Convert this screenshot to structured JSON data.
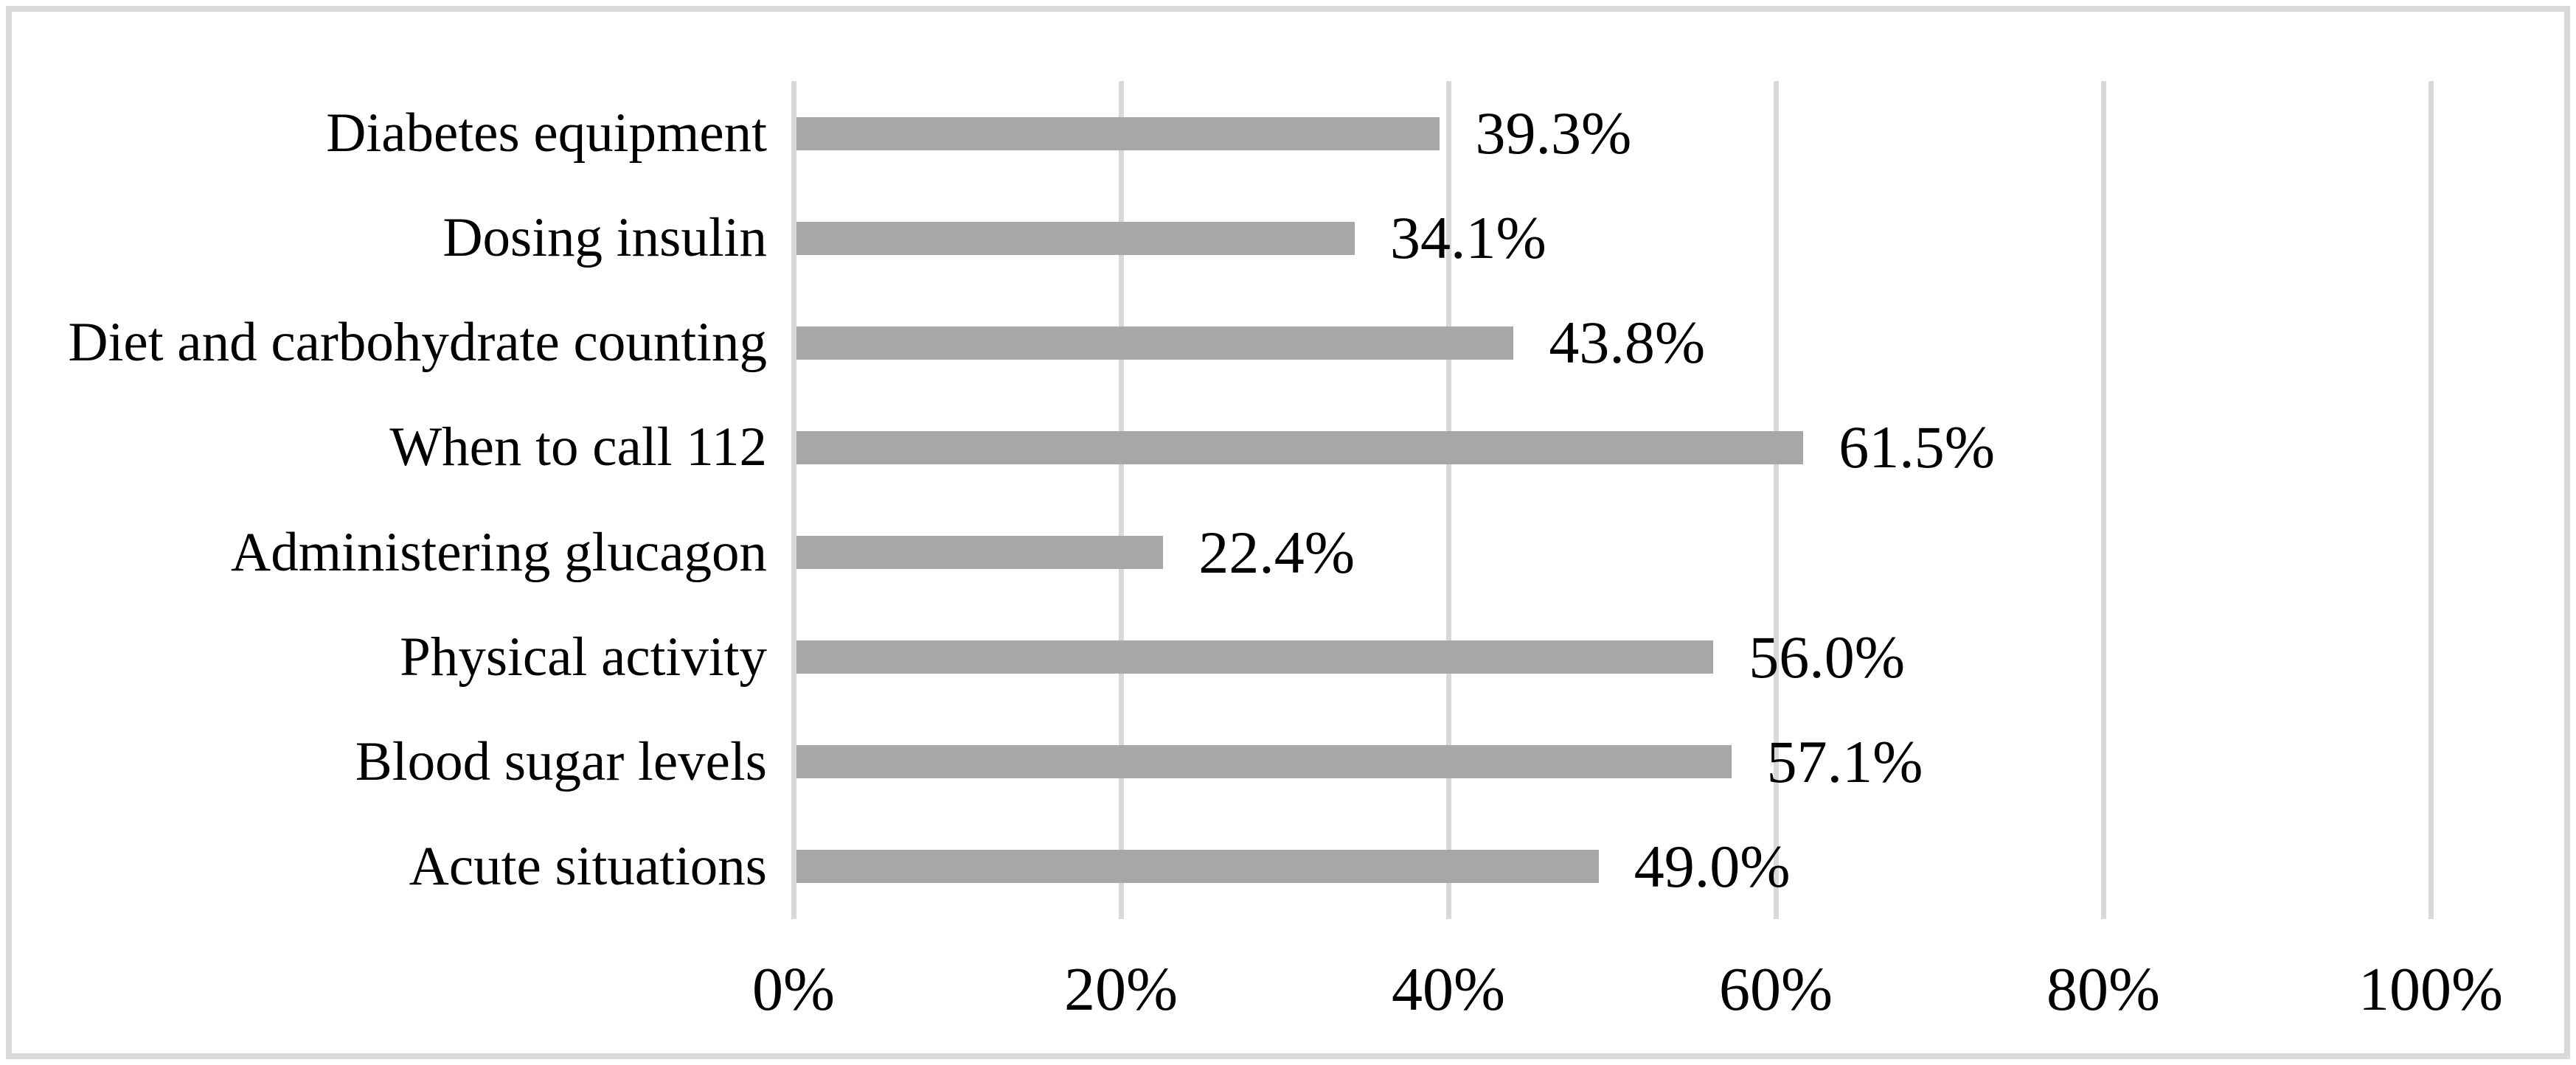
{
  "figure": {
    "background_color": "#ffffff",
    "frame_border_color": "#d9d9d9",
    "title": ""
  },
  "chart_data": {
    "type": "bar",
    "orientation": "horizontal",
    "title": "",
    "xlabel": "",
    "ylabel": "",
    "xlim": [
      0,
      100
    ],
    "grid": "vertical gridlines at 20% intervals",
    "gridline_color": "#d9d9d9",
    "axis_line_color": "#d9d9d9",
    "bar_color": "#a7a7a7",
    "label_color": "#000000",
    "legend": "none",
    "categories": [
      "Diabetes equipment",
      "Dosing insulin",
      "Diet and carbohydrate counting",
      "When to call 112",
      "Administering glucagon",
      "Physical activity",
      "Blood sugar levels",
      "Acute situations"
    ],
    "values": [
      39.3,
      34.1,
      43.8,
      61.5,
      22.4,
      56.0,
      57.1,
      49.0
    ],
    "value_labels": [
      "39.3%",
      "34.1%",
      "43.8%",
      "61.5%",
      "22.4%",
      "56.0%",
      "57.1%",
      "49.0%"
    ],
    "x_tick_values": [
      0,
      20,
      40,
      60,
      80,
      100
    ],
    "x_tick_labels": [
      "0%",
      "20%",
      "40%",
      "60%",
      "80%",
      "100%"
    ]
  }
}
